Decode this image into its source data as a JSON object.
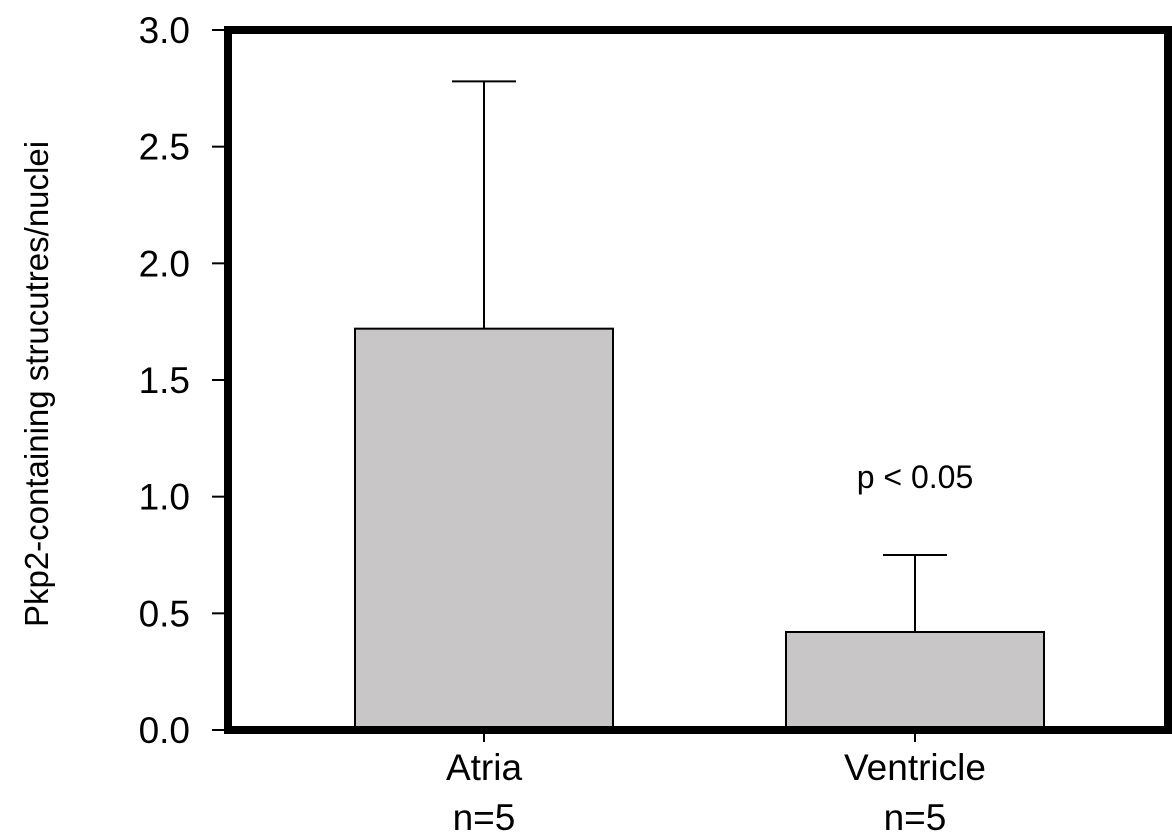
{
  "chart_data": {
    "type": "bar",
    "categories": [
      "Atria",
      "Ventricle"
    ],
    "category_sublabels": [
      "n=5",
      "n=5"
    ],
    "values": [
      1.72,
      0.42
    ],
    "error_upper": [
      2.78,
      0.75
    ],
    "ylabel": "Pkp2-containing strucutres/nuclei",
    "ylim": [
      0,
      3.0
    ],
    "yticks": [
      "0.0",
      "0.5",
      "1.0",
      "1.5",
      "2.0",
      "2.5",
      "3.0"
    ],
    "annotation": "p < 0.05",
    "annotation_category": "Ventricle",
    "colors": {
      "bar_fill": "#c8c6c7",
      "frame": "#000000"
    },
    "grid": false,
    "legend": "none"
  }
}
